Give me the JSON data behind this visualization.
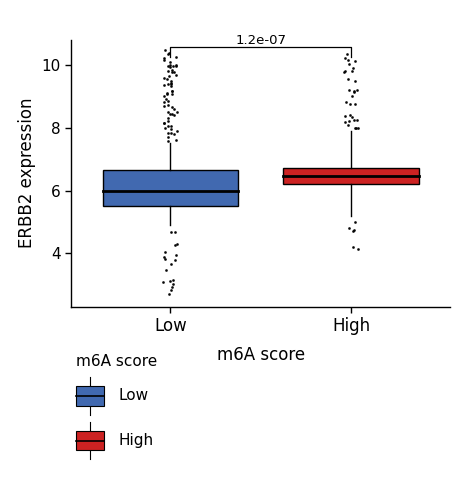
{
  "groups": [
    "Low",
    "High"
  ],
  "colors": [
    "#4169B0",
    "#CC2222"
  ],
  "ylabel": "ERBB2 expression",
  "xlabel": "m6A score",
  "ylim": [
    2.3,
    10.8
  ],
  "yticks": [
    4,
    6,
    8,
    10
  ],
  "pvalue_text": "1.2e-07",
  "legend_title": "m6A score",
  "legend_labels": [
    "Low",
    "High"
  ],
  "legend_colors": [
    "#4169B0",
    "#CC2222"
  ],
  "low_stats": {
    "median": 6.0,
    "q1": 5.5,
    "q3": 6.65,
    "whisker_low": 4.9,
    "whisker_high": 7.5,
    "n_outliers_above": 60,
    "outliers_above_range": [
      7.55,
      10.5
    ],
    "n_outliers_below": 18,
    "outliers_below_range": [
      2.6,
      4.85
    ]
  },
  "high_stats": {
    "median": 6.45,
    "q1": 6.2,
    "q3": 6.72,
    "whisker_low": 5.2,
    "whisker_high": 7.9,
    "n_outliers_above": 30,
    "outliers_above_range": [
      7.95,
      10.5
    ],
    "n_outliers_below": 6,
    "outliers_below_range": [
      3.6,
      5.1
    ]
  },
  "box_width": 0.75,
  "figsize": [
    4.74,
    4.95
  ],
  "dpi": 100
}
